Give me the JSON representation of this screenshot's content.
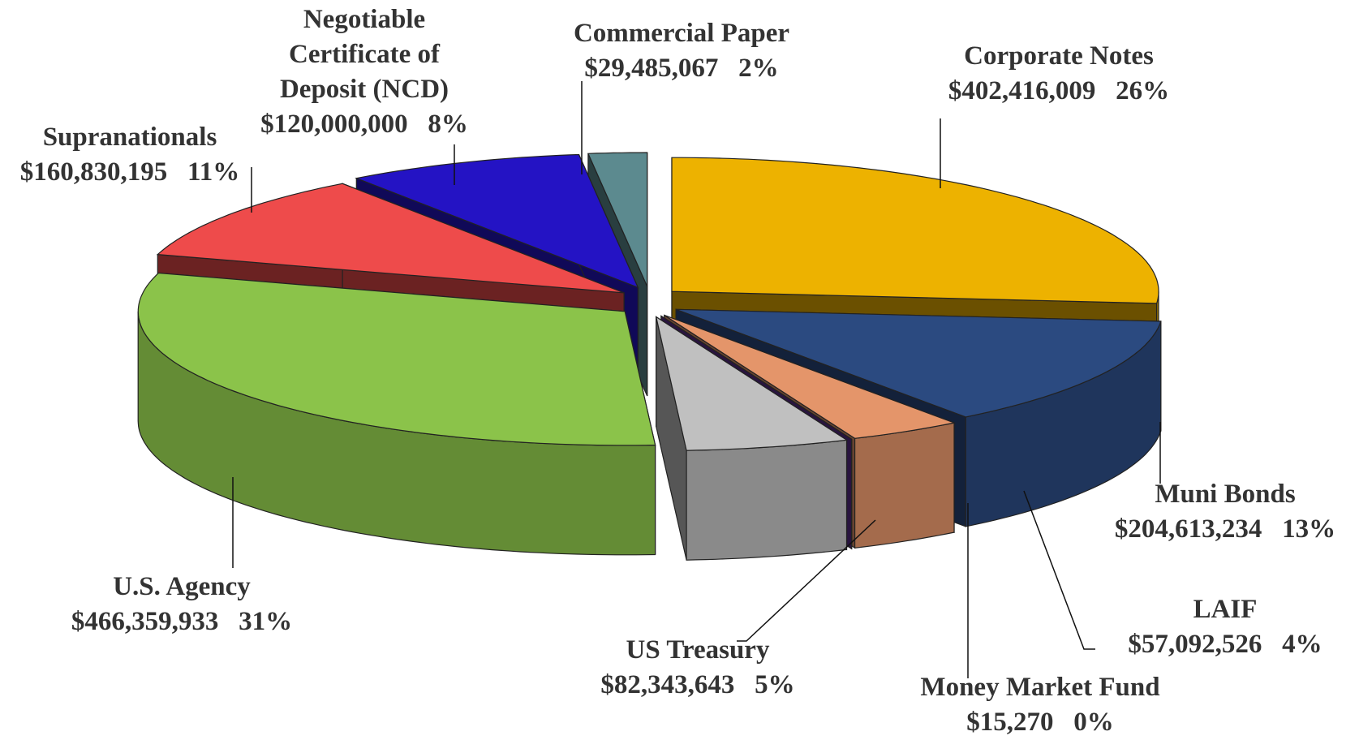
{
  "chart_data": {
    "type": "pie3d",
    "categories": [
      "Corporate Notes",
      "Muni Bonds",
      "LAIF",
      "Money Market Fund",
      "US Treasury",
      "U.S. Agency",
      "Supranationals",
      "Negotiable Certificate of Deposit (NCD)",
      "Commercial Paper"
    ],
    "values": [
      402416009,
      204613234,
      57092526,
      15270,
      82343643,
      466359933,
      160830195,
      120000000,
      29485067
    ],
    "value_labels": [
      "$402,416,009",
      "$204,613,234",
      "$57,092,526",
      "$15,270",
      "$82,343,643",
      "$466,359,933",
      "$160,830,195",
      "$120,000,000",
      "$29,485,067"
    ],
    "percent_labels": [
      "26%",
      "13%",
      "4%",
      "0%",
      "5%",
      "31%",
      "11%",
      "8%",
      "2%"
    ],
    "colors": [
      "#edb200",
      "#2b4a80",
      "#e4956a",
      "#5b2d8c",
      "#c0c0c0",
      "#8bc34a",
      "#ee4b4b",
      "#2413c4",
      "#5c8a8f"
    ]
  }
}
